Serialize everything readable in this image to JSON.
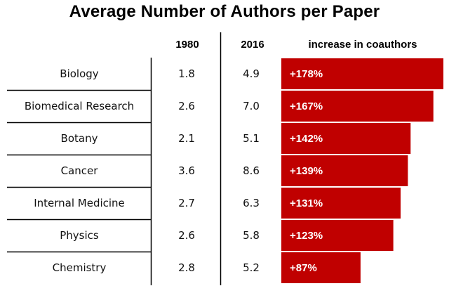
{
  "chart_data": {
    "type": "table",
    "title": "Average Number of Authors per Paper",
    "columns": [
      "1980",
      "2016",
      "increase in coauthors"
    ],
    "rows": [
      {
        "category": "Biology",
        "v1980": "1.8",
        "v2016": "4.9",
        "increase": 178,
        "increase_label": "+178%"
      },
      {
        "category": "Biomedical Research",
        "v1980": "2.6",
        "v2016": "7.0",
        "increase": 167,
        "increase_label": "+167%"
      },
      {
        "category": "Botany",
        "v1980": "2.1",
        "v2016": "5.1",
        "increase": 142,
        "increase_label": "+142%"
      },
      {
        "category": "Cancer",
        "v1980": "3.6",
        "v2016": "8.6",
        "increase": 139,
        "increase_label": "+139%"
      },
      {
        "category": "Internal Medicine",
        "v1980": "2.7",
        "v2016": "6.3",
        "increase": 131,
        "increase_label": "+131%"
      },
      {
        "category": "Physics",
        "v1980": "2.6",
        "v2016": "5.8",
        "increase": 123,
        "increase_label": "+123%"
      },
      {
        "category": "Chemistry",
        "v1980": "2.8",
        "v2016": "5.2",
        "increase": 87,
        "increase_label": "+87%"
      }
    ],
    "bar_color": "#c00000"
  }
}
